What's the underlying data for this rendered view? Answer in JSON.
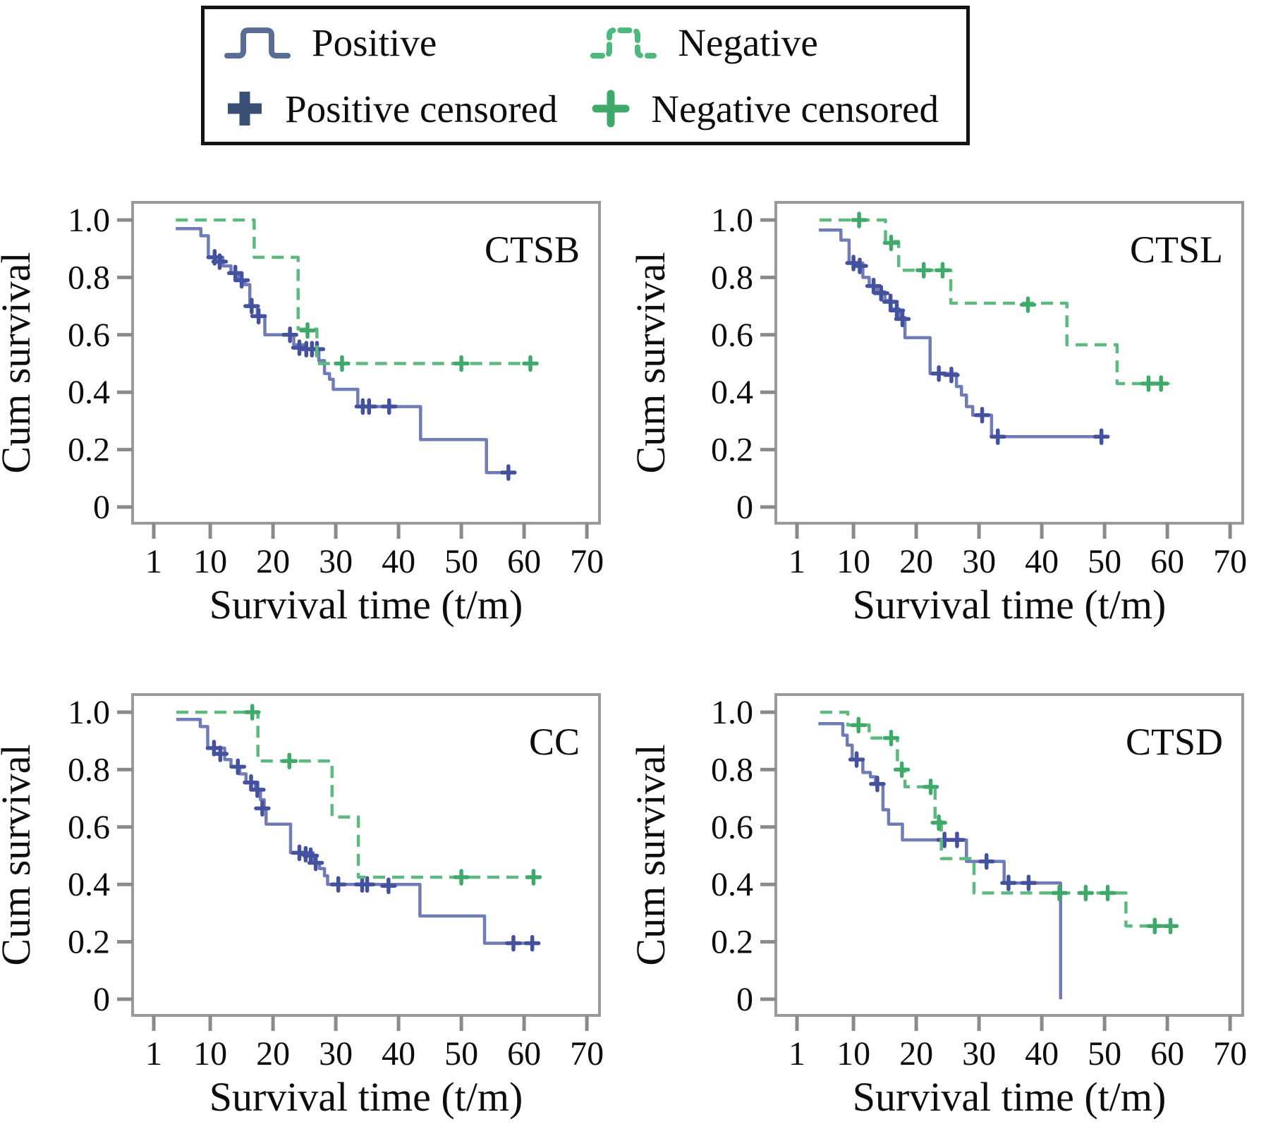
{
  "legend": {
    "items": [
      {
        "id": "positive",
        "label": "Positive",
        "symbol": "step-line",
        "color": "#5a6d96",
        "style": "solid"
      },
      {
        "id": "negative",
        "label": "Negative",
        "symbol": "step-line-dashed",
        "color": "#4fb87c",
        "style": "dashed"
      },
      {
        "id": "positive-censored",
        "label": "Positive censored",
        "symbol": "plus",
        "color": "#3a5077"
      },
      {
        "id": "negative-censored",
        "label": "Negative censored",
        "symbol": "plus",
        "color": "#3fa96a"
      }
    ]
  },
  "colors": {
    "positive_line": "#707cb8",
    "positive_censor": "#44519e",
    "negative_line": "#5cba81",
    "negative_censor": "#3fa96a",
    "plot_border": "#9a9a9a",
    "tick": "#8a8a8a",
    "text": "#0d0d0d"
  },
  "chart_data": [
    {
      "type": "line",
      "subtype": "kaplan-meier",
      "title": "CTSB",
      "xlabel": "Survival time (t/m)",
      "ylabel": "Cum survival",
      "xlim": [
        -3,
        74
      ],
      "ylim": [
        0,
        1.05
      ],
      "x_ticks": [
        1,
        10,
        20,
        30,
        40,
        50,
        60,
        70
      ],
      "y_ticks": [
        {
          "v": 1.0,
          "label": "1.0"
        },
        {
          "v": 0.8,
          "label": "0.8"
        },
        {
          "v": 0.6,
          "label": "0.6"
        },
        {
          "v": 0.4,
          "label": "0.4"
        },
        {
          "v": 0.2,
          "label": "0.2"
        },
        {
          "v": 0,
          "label": "0"
        }
      ],
      "grid": false,
      "legend_position": "top-external",
      "series": [
        {
          "name": "Positive",
          "style": "solid",
          "steps": [
            [
              4.5,
              0.97
            ],
            [
              8.5,
              0.945
            ],
            [
              9.7,
              0.87
            ],
            [
              12,
              0.84
            ],
            [
              13.3,
              0.815
            ],
            [
              14.5,
              0.79
            ],
            [
              15.5,
              0.775
            ],
            [
              16.3,
              0.7
            ],
            [
              17.5,
              0.665
            ],
            [
              18.7,
              0.6
            ],
            [
              23.3,
              0.565
            ],
            [
              25,
              0.55
            ],
            [
              27.3,
              0.51
            ],
            [
              28.2,
              0.465
            ],
            [
              29,
              0.445
            ],
            [
              29.6,
              0.41
            ],
            [
              33.5,
              0.35
            ],
            [
              43.5,
              0.235
            ],
            [
              54,
              0.12
            ]
          ],
          "end_time": 58,
          "censored": [
            [
              10.7,
              0.87
            ],
            [
              11.5,
              0.855
            ],
            [
              14,
              0.815
            ],
            [
              15,
              0.79
            ],
            [
              16.6,
              0.7
            ],
            [
              17.7,
              0.665
            ],
            [
              22.7,
              0.6
            ],
            [
              24.2,
              0.555
            ],
            [
              25.3,
              0.55
            ],
            [
              26.2,
              0.55
            ],
            [
              27,
              0.55
            ],
            [
              34.3,
              0.35
            ],
            [
              35.3,
              0.35
            ],
            [
              38.5,
              0.35
            ],
            [
              57.5,
              0.12
            ]
          ]
        },
        {
          "name": "Negative",
          "style": "dashed",
          "steps": [
            [
              4.5,
              1.0
            ],
            [
              17,
              0.87
            ],
            [
              24,
              0.62
            ],
            [
              27,
              0.5
            ]
          ],
          "end_time": 62,
          "censored": [
            [
              25.5,
              0.615
            ],
            [
              31,
              0.5
            ],
            [
              50,
              0.5
            ],
            [
              61,
              0.5
            ]
          ]
        }
      ]
    },
    {
      "type": "line",
      "subtype": "kaplan-meier",
      "title": "CTSL",
      "xlabel": "Survival time (t/m)",
      "ylabel": "Cum survival",
      "xlim": [
        -3,
        74
      ],
      "ylim": [
        0,
        1.05
      ],
      "x_ticks": [
        1,
        10,
        20,
        30,
        40,
        50,
        60,
        70
      ],
      "y_ticks": [
        {
          "v": 1.0,
          "label": "1.0"
        },
        {
          "v": 0.8,
          "label": "0.8"
        },
        {
          "v": 0.6,
          "label": "0.6"
        },
        {
          "v": 0.4,
          "label": "0.4"
        },
        {
          "v": 0.2,
          "label": "0.2"
        },
        {
          "v": 0,
          "label": "0"
        }
      ],
      "grid": false,
      "legend_position": "top-external",
      "series": [
        {
          "name": "Positive",
          "style": "solid",
          "steps": [
            [
              4.5,
              0.965
            ],
            [
              8,
              0.93
            ],
            [
              9.3,
              0.85
            ],
            [
              11.5,
              0.8
            ],
            [
              12.5,
              0.77
            ],
            [
              13.8,
              0.75
            ],
            [
              15,
              0.72
            ],
            [
              16,
              0.69
            ],
            [
              17.3,
              0.66
            ],
            [
              18.2,
              0.59
            ],
            [
              22.2,
              0.465
            ],
            [
              26.4,
              0.42
            ],
            [
              27.2,
              0.39
            ],
            [
              28,
              0.35
            ],
            [
              29,
              0.32
            ],
            [
              32,
              0.245
            ]
          ],
          "end_time": 50,
          "censored": [
            [
              10,
              0.85
            ],
            [
              11,
              0.84
            ],
            [
              13.2,
              0.77
            ],
            [
              14.4,
              0.745
            ],
            [
              15.9,
              0.715
            ],
            [
              16.9,
              0.685
            ],
            [
              17.8,
              0.655
            ],
            [
              23.6,
              0.465
            ],
            [
              25.6,
              0.46
            ],
            [
              30.5,
              0.32
            ],
            [
              33,
              0.245
            ],
            [
              49.5,
              0.245
            ]
          ]
        },
        {
          "name": "Negative",
          "style": "dashed",
          "steps": [
            [
              4.6,
              1.0
            ],
            [
              15.1,
              0.925
            ],
            [
              17.2,
              0.825
            ],
            [
              25.5,
              0.71
            ],
            [
              44,
              0.565
            ],
            [
              52,
              0.43
            ]
          ],
          "end_time": 60.5,
          "censored": [
            [
              10.9,
              1.0
            ],
            [
              16,
              0.92
            ],
            [
              21.2,
              0.825
            ],
            [
              24.2,
              0.825
            ],
            [
              37.8,
              0.705
            ],
            [
              57,
              0.43
            ],
            [
              59,
              0.43
            ]
          ]
        }
      ]
    },
    {
      "type": "line",
      "subtype": "kaplan-meier",
      "title": "CC",
      "xlabel": "Survival time (t/m)",
      "ylabel": "Cum survival",
      "xlim": [
        -3,
        74
      ],
      "ylim": [
        0,
        1.05
      ],
      "x_ticks": [
        1,
        10,
        20,
        30,
        40,
        50,
        60,
        70
      ],
      "y_ticks": [
        {
          "v": 1.0,
          "label": "1.0"
        },
        {
          "v": 0.8,
          "label": "0.8"
        },
        {
          "v": 0.6,
          "label": "0.6"
        },
        {
          "v": 0.4,
          "label": "0.4"
        },
        {
          "v": 0.2,
          "label": "0.2"
        },
        {
          "v": 0,
          "label": "0"
        }
      ],
      "grid": false,
      "legend_position": "top-external",
      "series": [
        {
          "name": "Positive",
          "style": "solid",
          "steps": [
            [
              4.6,
              0.975
            ],
            [
              8.4,
              0.95
            ],
            [
              9.6,
              0.875
            ],
            [
              12.3,
              0.835
            ],
            [
              13.3,
              0.81
            ],
            [
              14.7,
              0.785
            ],
            [
              15.7,
              0.755
            ],
            [
              17.2,
              0.73
            ],
            [
              18,
              0.695
            ],
            [
              18.6,
              0.665
            ],
            [
              18.9,
              0.61
            ],
            [
              22.8,
              0.51
            ],
            [
              26.4,
              0.475
            ],
            [
              27.4,
              0.455
            ],
            [
              28.2,
              0.43
            ],
            [
              28.7,
              0.4
            ],
            [
              43.4,
              0.29
            ],
            [
              53.7,
              0.195
            ]
          ],
          "end_time": 62,
          "censored": [
            [
              10.6,
              0.875
            ],
            [
              11.6,
              0.855
            ],
            [
              14.4,
              0.81
            ],
            [
              16.5,
              0.755
            ],
            [
              17.5,
              0.73
            ],
            [
              18.3,
              0.665
            ],
            [
              24.2,
              0.51
            ],
            [
              25.2,
              0.505
            ],
            [
              26,
              0.5
            ],
            [
              26.8,
              0.475
            ],
            [
              30.4,
              0.4
            ],
            [
              34.2,
              0.4
            ],
            [
              35,
              0.4
            ],
            [
              38.4,
              0.395
            ],
            [
              58.3,
              0.195
            ],
            [
              61.3,
              0.195
            ]
          ]
        },
        {
          "name": "Negative",
          "style": "dashed",
          "steps": [
            [
              4.6,
              1.0
            ],
            [
              17.6,
              0.83
            ],
            [
              29.4,
              0.635
            ],
            [
              33.6,
              0.425
            ]
          ],
          "end_time": 62,
          "censored": [
            [
              16.7,
              1.0
            ],
            [
              22.6,
              0.83
            ],
            [
              50,
              0.425
            ],
            [
              61.5,
              0.425
            ]
          ]
        }
      ]
    },
    {
      "type": "line",
      "subtype": "kaplan-meier",
      "title": "CTSD",
      "xlabel": "Survival time (t/m)",
      "ylabel": "Cum survival",
      "xlim": [
        -3,
        74
      ],
      "ylim": [
        0,
        1.05
      ],
      "x_ticks": [
        1,
        10,
        20,
        30,
        40,
        50,
        60,
        70
      ],
      "y_ticks": [
        {
          "v": 1.0,
          "label": "1.0"
        },
        {
          "v": 0.8,
          "label": "0.8"
        },
        {
          "v": 0.6,
          "label": "0.6"
        },
        {
          "v": 0.4,
          "label": "0.4"
        },
        {
          "v": 0.2,
          "label": "0.2"
        },
        {
          "v": 0,
          "label": "0"
        }
      ],
      "grid": false,
      "legend_position": "top-external",
      "series": [
        {
          "name": "Positive",
          "style": "solid",
          "steps": [
            [
              4.4,
              0.96
            ],
            [
              8.3,
              0.92
            ],
            [
              9,
              0.885
            ],
            [
              9.8,
              0.835
            ],
            [
              11.5,
              0.79
            ],
            [
              12.7,
              0.775
            ],
            [
              13.5,
              0.75
            ],
            [
              14.7,
              0.66
            ],
            [
              15.6,
              0.61
            ],
            [
              17.8,
              0.555
            ],
            [
              28,
              0.48
            ],
            [
              34,
              0.405
            ],
            [
              43,
              0.0
            ]
          ],
          "end_time": 43,
          "censored": [
            [
              10.5,
              0.835
            ],
            [
              13.8,
              0.75
            ],
            [
              24.5,
              0.555
            ],
            [
              26.5,
              0.555
            ],
            [
              31.2,
              0.48
            ],
            [
              34.7,
              0.405
            ],
            [
              37.9,
              0.405
            ]
          ]
        },
        {
          "name": "Negative",
          "style": "dashed",
          "steps": [
            [
              4.7,
              1.0
            ],
            [
              9.1,
              0.955
            ],
            [
              12.5,
              0.91
            ],
            [
              17,
              0.8
            ],
            [
              18.2,
              0.74
            ],
            [
              23,
              0.62
            ],
            [
              24,
              0.49
            ],
            [
              29.2,
              0.37
            ],
            [
              53.4,
              0.255
            ]
          ],
          "end_time": 61.5,
          "censored": [
            [
              10.8,
              0.955
            ],
            [
              16,
              0.91
            ],
            [
              17.7,
              0.8
            ],
            [
              22.3,
              0.74
            ],
            [
              23.6,
              0.615
            ],
            [
              42.8,
              0.37
            ],
            [
              47,
              0.37
            ],
            [
              50.5,
              0.37
            ],
            [
              58,
              0.255
            ],
            [
              60.5,
              0.255
            ]
          ]
        }
      ]
    }
  ]
}
